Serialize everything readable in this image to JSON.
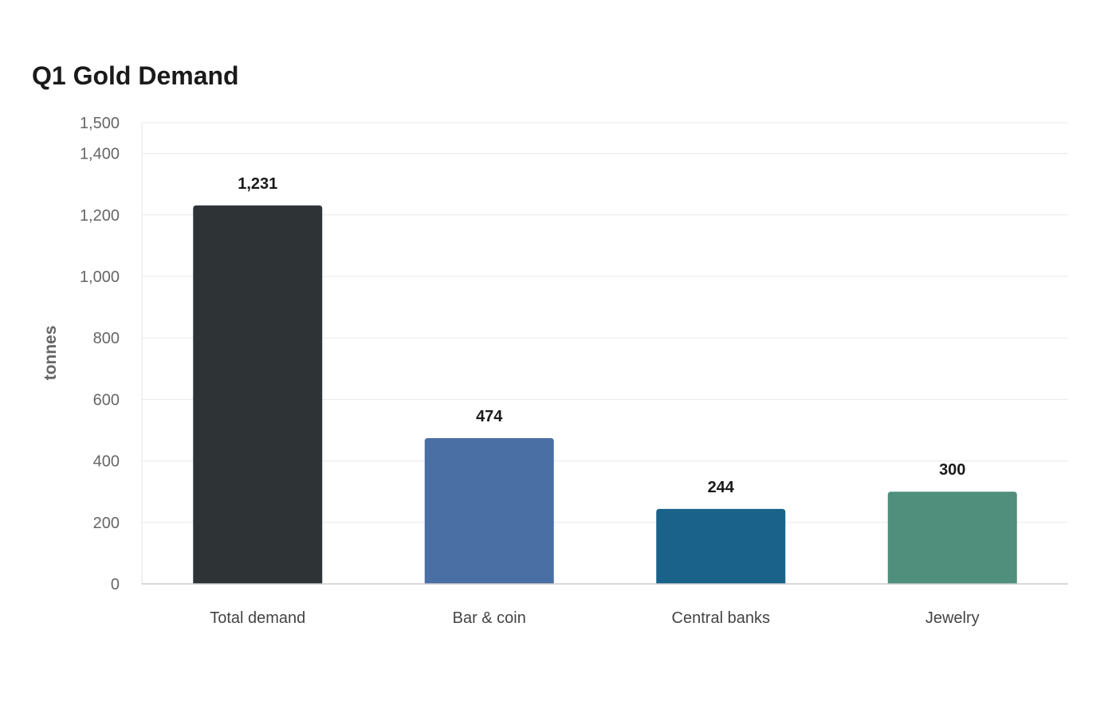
{
  "chart_data": {
    "type": "bar",
    "title": "Q1 Gold Demand",
    "xlabel": "",
    "ylabel": "tonnes",
    "categories": [
      "Total demand",
      "Bar & coin",
      "Central banks",
      "Jewelry"
    ],
    "values": [
      1231,
      474,
      244,
      300
    ],
    "value_labels": [
      "1,231",
      "474",
      "244",
      "300"
    ],
    "colors": [
      "#2e3436",
      "#4a6fa5",
      "#1a628a",
      "#4f8f7b"
    ],
    "ylim": [
      0,
      1500
    ],
    "yticks": [
      0,
      200,
      400,
      600,
      800,
      1000,
      1200,
      1400,
      1500
    ],
    "ytick_labels": [
      "0",
      "200",
      "400",
      "600",
      "800",
      "1,000",
      "1,200",
      "1,400",
      "1,500"
    ],
    "grid": true,
    "legend": "none"
  }
}
